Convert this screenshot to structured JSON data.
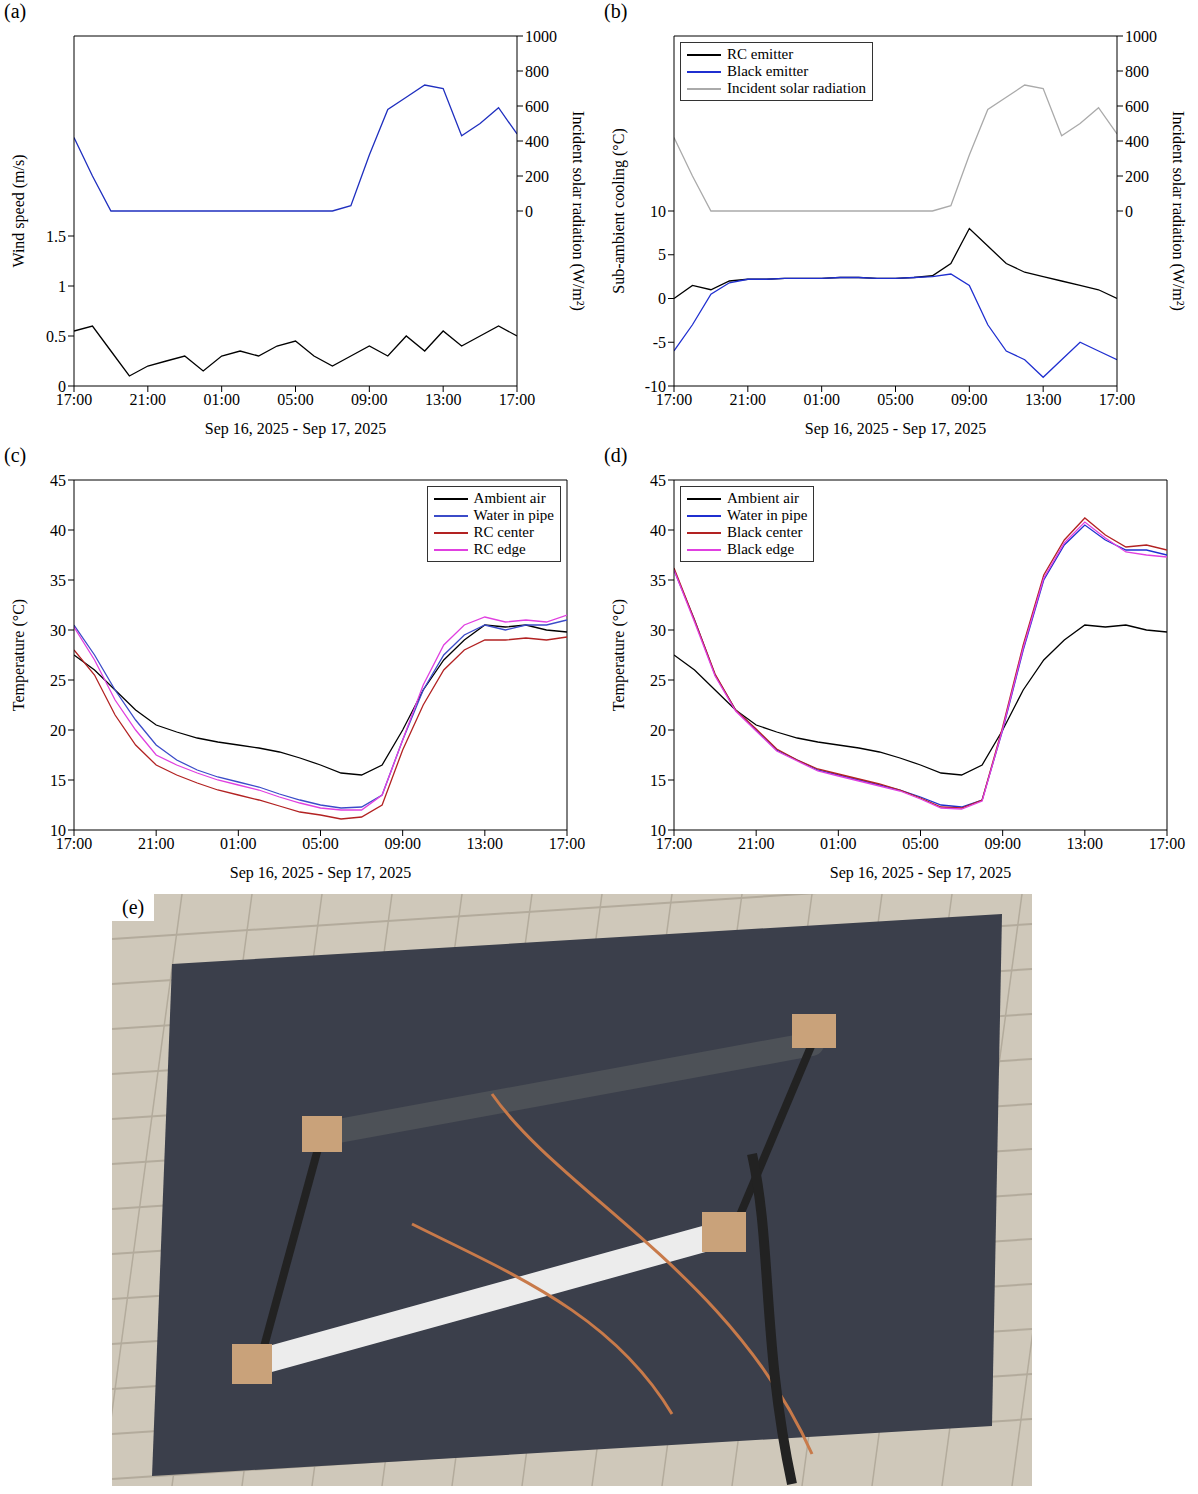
{
  "chart_data": [
    {
      "type": "line",
      "panel_label": "(a)",
      "x_label": "Sep 16, 2025 - Sep 17, 2025",
      "y_label": "Wind speed (m/s)",
      "y2_label": "Incident solar radiation (W/m²)",
      "x": [
        0,
        1,
        2,
        3,
        4,
        5,
        6,
        7,
        8,
        9,
        10,
        11,
        12,
        13,
        14,
        15,
        16,
        17,
        18,
        19,
        20,
        21,
        22,
        23,
        24
      ],
      "xlim": [
        0,
        24
      ],
      "xticks": [
        {
          "value": 0,
          "label": "17:00"
        },
        {
          "value": 4,
          "label": "21:00"
        },
        {
          "value": 8,
          "label": "01:00"
        },
        {
          "value": 12,
          "label": "05:00"
        },
        {
          "value": 16,
          "label": "09:00"
        },
        {
          "value": 20,
          "label": "13:00"
        },
        {
          "value": 24,
          "label": "17:00"
        }
      ],
      "ylim": [
        0,
        3.5
      ],
      "yticks": [
        0,
        0.5,
        1,
        1.5
      ],
      "y2lim": [
        -1000,
        1000
      ],
      "y2ticks": [
        0,
        200,
        400,
        600,
        800,
        1000
      ],
      "grid": false,
      "series": [
        {
          "color": "#000000",
          "values": [
            0.55,
            0.6,
            0.35,
            0.1,
            0.2,
            0.25,
            0.3,
            0.15,
            0.3,
            0.35,
            0.3,
            0.4,
            0.45,
            0.3,
            0.2,
            0.3,
            0.4,
            0.3,
            0.5,
            0.35,
            0.55,
            0.4,
            0.5,
            0.6,
            0.5
          ]
        },
        {
          "color": "#1f2fbf",
          "axis": "y2",
          "values": [
            420,
            200,
            0,
            0,
            0,
            0,
            0,
            0,
            0,
            0,
            0,
            0,
            0,
            0,
            0,
            30,
            320,
            580,
            650,
            720,
            700,
            430,
            500,
            590,
            440
          ]
        }
      ]
    },
    {
      "type": "line",
      "panel_label": "(b)",
      "x_label": "Sep 16, 2025 - Sep 17, 2025",
      "y_label": "Sub-ambient cooling (°C)",
      "y2_label": "Incident solar radiation (W/m²)",
      "x": [
        0,
        1,
        2,
        3,
        4,
        5,
        6,
        7,
        8,
        9,
        10,
        11,
        12,
        13,
        14,
        15,
        16,
        17,
        18,
        19,
        20,
        21,
        22,
        23,
        24
      ],
      "xlim": [
        0,
        24
      ],
      "xticks": [
        {
          "value": 0,
          "label": "17:00"
        },
        {
          "value": 4,
          "label": "21:00"
        },
        {
          "value": 8,
          "label": "01:00"
        },
        {
          "value": 12,
          "label": "05:00"
        },
        {
          "value": 16,
          "label": "09:00"
        },
        {
          "value": 20,
          "label": "13:00"
        },
        {
          "value": 24,
          "label": "17:00"
        }
      ],
      "ylim": [
        -10,
        30
      ],
      "yticks": [
        -10,
        -5,
        0,
        5,
        10
      ],
      "y2lim": [
        -1000,
        1000
      ],
      "y2ticks": [
        0,
        200,
        400,
        600,
        800,
        1000
      ],
      "grid": false,
      "legend": "upper left",
      "series": [
        {
          "name": "RC emitter",
          "color": "#000000",
          "values": [
            0,
            1.5,
            1,
            2,
            2.2,
            2.2,
            2.3,
            2.3,
            2.3,
            2.4,
            2.4,
            2.3,
            2.3,
            2.4,
            2.6,
            4,
            8,
            6,
            4,
            3,
            2.5,
            2,
            1.5,
            1,
            0
          ]
        },
        {
          "name": "Black emitter",
          "color": "#1f2fd0",
          "values": [
            -6,
            -3,
            0.5,
            1.8,
            2.2,
            2.2,
            2.3,
            2.3,
            2.3,
            2.4,
            2.4,
            2.3,
            2.3,
            2.4,
            2.5,
            2.8,
            1.5,
            -3,
            -6,
            -7,
            -9,
            -7,
            -5,
            -6,
            -7
          ]
        },
        {
          "name": "Incident solar radiation",
          "color": "#aaaaaa",
          "axis": "y2",
          "values": [
            420,
            200,
            0,
            0,
            0,
            0,
            0,
            0,
            0,
            0,
            0,
            0,
            0,
            0,
            0,
            30,
            320,
            580,
            650,
            720,
            700,
            430,
            500,
            590,
            440
          ]
        }
      ]
    },
    {
      "type": "line",
      "panel_label": "(c)",
      "x_label": "Sep 16, 2025 - Sep 17, 2025",
      "y_label": "Temperature (°C)",
      "x": [
        0,
        1,
        2,
        3,
        4,
        5,
        6,
        7,
        8,
        9,
        10,
        11,
        12,
        13,
        14,
        15,
        16,
        17,
        18,
        19,
        20,
        21,
        22,
        23,
        24
      ],
      "xlim": [
        0,
        24
      ],
      "xticks": [
        {
          "value": 0,
          "label": "17:00"
        },
        {
          "value": 4,
          "label": "21:00"
        },
        {
          "value": 8,
          "label": "01:00"
        },
        {
          "value": 12,
          "label": "05:00"
        },
        {
          "value": 16,
          "label": "09:00"
        },
        {
          "value": 20,
          "label": "13:00"
        },
        {
          "value": 24,
          "label": "17:00"
        }
      ],
      "ylim": [
        10,
        45
      ],
      "yticks": [
        10,
        15,
        20,
        25,
        30,
        35,
        40,
        45
      ],
      "grid": false,
      "legend": "upper right",
      "series": [
        {
          "name": "Ambient air",
          "color": "#000000",
          "values": [
            27.5,
            26,
            24,
            22,
            20.5,
            19.8,
            19.2,
            18.8,
            18.5,
            18.2,
            17.8,
            17.2,
            16.5,
            15.7,
            15.5,
            16.5,
            20,
            24,
            27,
            29,
            30.5,
            30.3,
            30.5,
            30,
            29.8
          ]
        },
        {
          "name": "Water in pipe",
          "color": "#3b4bc8",
          "values": [
            30.5,
            27.5,
            24,
            21,
            18.5,
            17,
            16,
            15.3,
            14.8,
            14.3,
            13.6,
            13,
            12.5,
            12.2,
            12.3,
            13.5,
            19,
            24,
            27.5,
            29.5,
            30.5,
            30,
            30.5,
            30.5,
            31
          ]
        },
        {
          "name": "RC center",
          "color": "#b22222",
          "values": [
            28,
            25.5,
            21.5,
            18.5,
            16.5,
            15.5,
            14.7,
            14,
            13.5,
            13,
            12.4,
            11.8,
            11.5,
            11.1,
            11.3,
            12.5,
            18,
            22.5,
            26,
            28,
            29,
            29,
            29.2,
            29,
            29.3
          ]
        },
        {
          "name": "RC edge",
          "color": "#e040e0",
          "values": [
            30.3,
            27,
            23,
            20,
            17.5,
            16.5,
            15.7,
            15,
            14.5,
            14,
            13.3,
            12.7,
            12.2,
            12,
            12,
            13.5,
            19,
            24.5,
            28.5,
            30.5,
            31.3,
            30.8,
            31,
            30.8,
            31.5
          ]
        }
      ]
    },
    {
      "type": "line",
      "panel_label": "(d)",
      "x_label": "Sep 16, 2025 - Sep 17, 2025",
      "y_label": "Temperature (°C)",
      "x": [
        0,
        1,
        2,
        3,
        4,
        5,
        6,
        7,
        8,
        9,
        10,
        11,
        12,
        13,
        14,
        15,
        16,
        17,
        18,
        19,
        20,
        21,
        22,
        23,
        24
      ],
      "xlim": [
        0,
        24
      ],
      "xticks": [
        {
          "value": 0,
          "label": "17:00"
        },
        {
          "value": 4,
          "label": "21:00"
        },
        {
          "value": 8,
          "label": "01:00"
        },
        {
          "value": 12,
          "label": "05:00"
        },
        {
          "value": 16,
          "label": "09:00"
        },
        {
          "value": 20,
          "label": "13:00"
        },
        {
          "value": 24,
          "label": "17:00"
        }
      ],
      "ylim": [
        10,
        45
      ],
      "yticks": [
        10,
        15,
        20,
        25,
        30,
        35,
        40,
        45
      ],
      "grid": false,
      "legend": "upper left",
      "series": [
        {
          "name": "Ambient air",
          "color": "#000000",
          "values": [
            27.5,
            26,
            24,
            22,
            20.5,
            19.8,
            19.2,
            18.8,
            18.5,
            18.2,
            17.8,
            17.2,
            16.5,
            15.7,
            15.5,
            16.5,
            20,
            24,
            27,
            29,
            30.5,
            30.3,
            30.5,
            30,
            29.8
          ]
        },
        {
          "name": "Water in pipe",
          "color": "#1f2fd0",
          "values": [
            36,
            31,
            25.5,
            22,
            20,
            18,
            17,
            16,
            15.5,
            15,
            14.5,
            14,
            13.3,
            12.5,
            12.3,
            13,
            20,
            28,
            35,
            38.5,
            40.5,
            39,
            38,
            38,
            37.5
          ]
        },
        {
          "name": "Black center",
          "color": "#b22222",
          "values": [
            36.2,
            31,
            25.6,
            22,
            20.1,
            18.1,
            17,
            16.1,
            15.6,
            15.1,
            14.6,
            14,
            13.2,
            12.3,
            12.2,
            13,
            20.3,
            28.5,
            35.5,
            39,
            41.2,
            39.5,
            38.3,
            38.5,
            38
          ]
        },
        {
          "name": "Black edge",
          "color": "#e040e0",
          "values": [
            36,
            30.8,
            25.4,
            21.9,
            19.9,
            17.9,
            16.9,
            15.9,
            15.4,
            14.9,
            14.4,
            13.9,
            13.1,
            12.2,
            12.1,
            12.9,
            20.1,
            28.2,
            35.2,
            38.7,
            40.8,
            39.2,
            37.8,
            37.5,
            37.3
          ]
        }
      ]
    }
  ],
  "photo": {
    "label": "(e)"
  }
}
